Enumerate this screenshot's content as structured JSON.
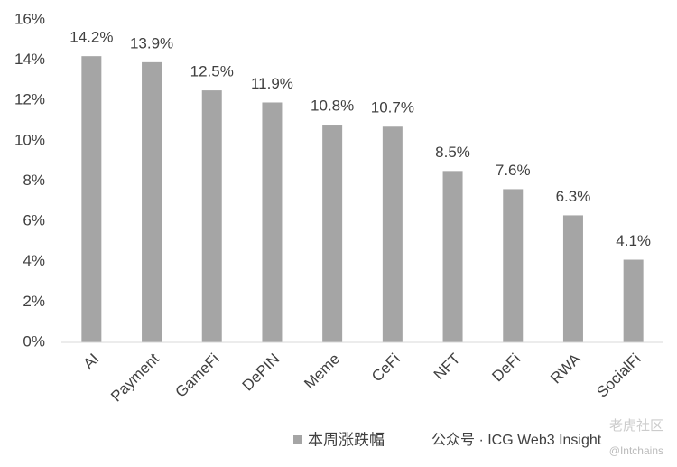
{
  "chart_data": {
    "type": "bar",
    "categories": [
      "AI",
      "Payment",
      "GameFi",
      "DePIN",
      "Meme",
      "CeFi",
      "NFT",
      "DeFi",
      "RWA",
      "SocialFi"
    ],
    "series": [
      {
        "name": "本周涨跌幅",
        "color": "#a5a5a5",
        "values": [
          14.2,
          13.9,
          12.5,
          11.9,
          10.8,
          10.7,
          8.5,
          7.6,
          6.3,
          4.1
        ],
        "value_labels": [
          "14.2%",
          "13.9%",
          "12.5%",
          "11.9%",
          "10.8%",
          "10.7%",
          "8.5%",
          "7.6%",
          "6.3%",
          "4.1%"
        ]
      }
    ],
    "ylim": [
      0,
      16
    ],
    "yticks": [
      {
        "value": 0,
        "label": "0%"
      },
      {
        "value": 2,
        "label": "2%"
      },
      {
        "value": 4,
        "label": "4%"
      },
      {
        "value": 6,
        "label": "6%"
      },
      {
        "value": 8,
        "label": "8%"
      },
      {
        "value": 10,
        "label": "10%"
      },
      {
        "value": 12,
        "label": "12%"
      },
      {
        "value": 14,
        "label": "14%"
      },
      {
        "value": 16,
        "label": "16%"
      }
    ],
    "grid": false,
    "legend": "bottom"
  },
  "watermarks": [
    "公众号 · ICG Web3 Insight",
    "老虎社区",
    "@Intchains"
  ]
}
